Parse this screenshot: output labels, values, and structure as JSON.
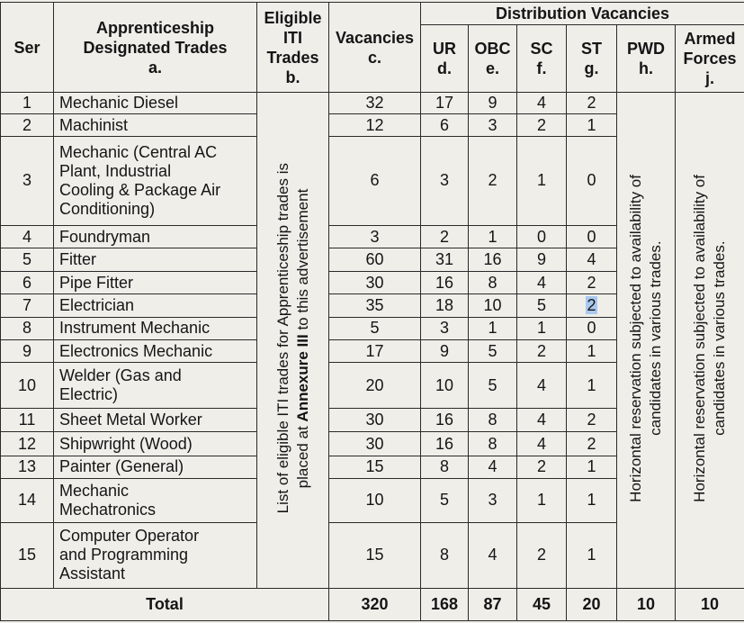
{
  "headers": {
    "ser": "Ser",
    "trade": [
      "Apprenticeship",
      "Designated Trades",
      "a."
    ],
    "iti": [
      "Eligible",
      "ITI",
      "Trades",
      "b."
    ],
    "vacancies": [
      "Vacancies",
      "c."
    ],
    "distribution": "Distribution Vacancies",
    "ur": [
      "UR",
      "d."
    ],
    "obc": [
      "OBC",
      "e."
    ],
    "sc": [
      "SC",
      "f."
    ],
    "st": [
      "ST",
      "g."
    ],
    "pwd": [
      "PWD",
      "h."
    ],
    "armed": [
      "Armed",
      "Forces",
      "j."
    ]
  },
  "iti_note": {
    "line1": "List of eligible ITI trades for Apprenticeship trades is",
    "line2_prefix": "placed at ",
    "line2_bold": "Annexure III",
    "line2_suffix": " to this advertisement"
  },
  "pwd_note": [
    "Horizontal reservation subjected to availability of",
    "candidates in various trades."
  ],
  "armed_note": [
    "Horizontal reservation subjected to availability of",
    "candidates in various trades."
  ],
  "rows": [
    {
      "ser": "1",
      "trade": [
        "Mechanic Diesel"
      ],
      "vac": "32",
      "ur": "17",
      "obc": "9",
      "sc": "4",
      "st": "2"
    },
    {
      "ser": "2",
      "trade": [
        "Machinist"
      ],
      "vac": "12",
      "ur": "6",
      "obc": "3",
      "sc": "2",
      "st": "1"
    },
    {
      "ser": "3",
      "trade": [
        "Mechanic (Central AC",
        "Plant, Industrial",
        "Cooling & Package Air",
        "Conditioning)"
      ],
      "vac": "6",
      "ur": "3",
      "obc": "2",
      "sc": "1",
      "st": "0"
    },
    {
      "ser": "4",
      "trade": [
        "Foundryman"
      ],
      "vac": "3",
      "ur": "2",
      "obc": "1",
      "sc": "0",
      "st": "0"
    },
    {
      "ser": "5",
      "trade": [
        "Fitter"
      ],
      "vac": "60",
      "ur": "31",
      "obc": "16",
      "sc": "9",
      "st": "4"
    },
    {
      "ser": "6",
      "trade": [
        "Pipe Fitter"
      ],
      "vac": "30",
      "ur": "16",
      "obc": "8",
      "sc": "4",
      "st": "2"
    },
    {
      "ser": "7",
      "trade": [
        "Electrician"
      ],
      "vac": "35",
      "ur": "18",
      "obc": "10",
      "sc": "5",
      "st": "2"
    },
    {
      "ser": "8",
      "trade": [
        "Instrument Mechanic"
      ],
      "vac": "5",
      "ur": "3",
      "obc": "1",
      "sc": "1",
      "st": "0"
    },
    {
      "ser": "9",
      "trade": [
        "Electronics Mechanic"
      ],
      "vac": "17",
      "ur": "9",
      "obc": "5",
      "sc": "2",
      "st": "1"
    },
    {
      "ser": "10",
      "trade": [
        "Welder (Gas and",
        "Electric)"
      ],
      "vac": "20",
      "ur": "10",
      "obc": "5",
      "sc": "4",
      "st": "1"
    },
    {
      "ser": "11",
      "trade": [
        "Sheet Metal Worker"
      ],
      "vac": "30",
      "ur": "16",
      "obc": "8",
      "sc": "4",
      "st": "2"
    },
    {
      "ser": "12",
      "trade": [
        "Shipwright (Wood)"
      ],
      "vac": "30",
      "ur": "16",
      "obc": "8",
      "sc": "4",
      "st": "2"
    },
    {
      "ser": "13",
      "trade": [
        "Painter (General)"
      ],
      "vac": "15",
      "ur": "8",
      "obc": "4",
      "sc": "2",
      "st": "1"
    },
    {
      "ser": "14",
      "trade": [
        "Mechanic",
        "Mechatronics"
      ],
      "vac": "10",
      "ur": "5",
      "obc": "3",
      "sc": "1",
      "st": "1"
    },
    {
      "ser": "15",
      "trade": [
        "Computer Operator",
        "and Programming",
        "Assistant"
      ],
      "vac": "15",
      "ur": "8",
      "obc": "4",
      "sc": "2",
      "st": "1"
    }
  ],
  "total": {
    "label": "Total",
    "vac": "320",
    "ur": "168",
    "obc": "87",
    "sc": "45",
    "st": "20",
    "pwd": "10",
    "armed": "10"
  }
}
